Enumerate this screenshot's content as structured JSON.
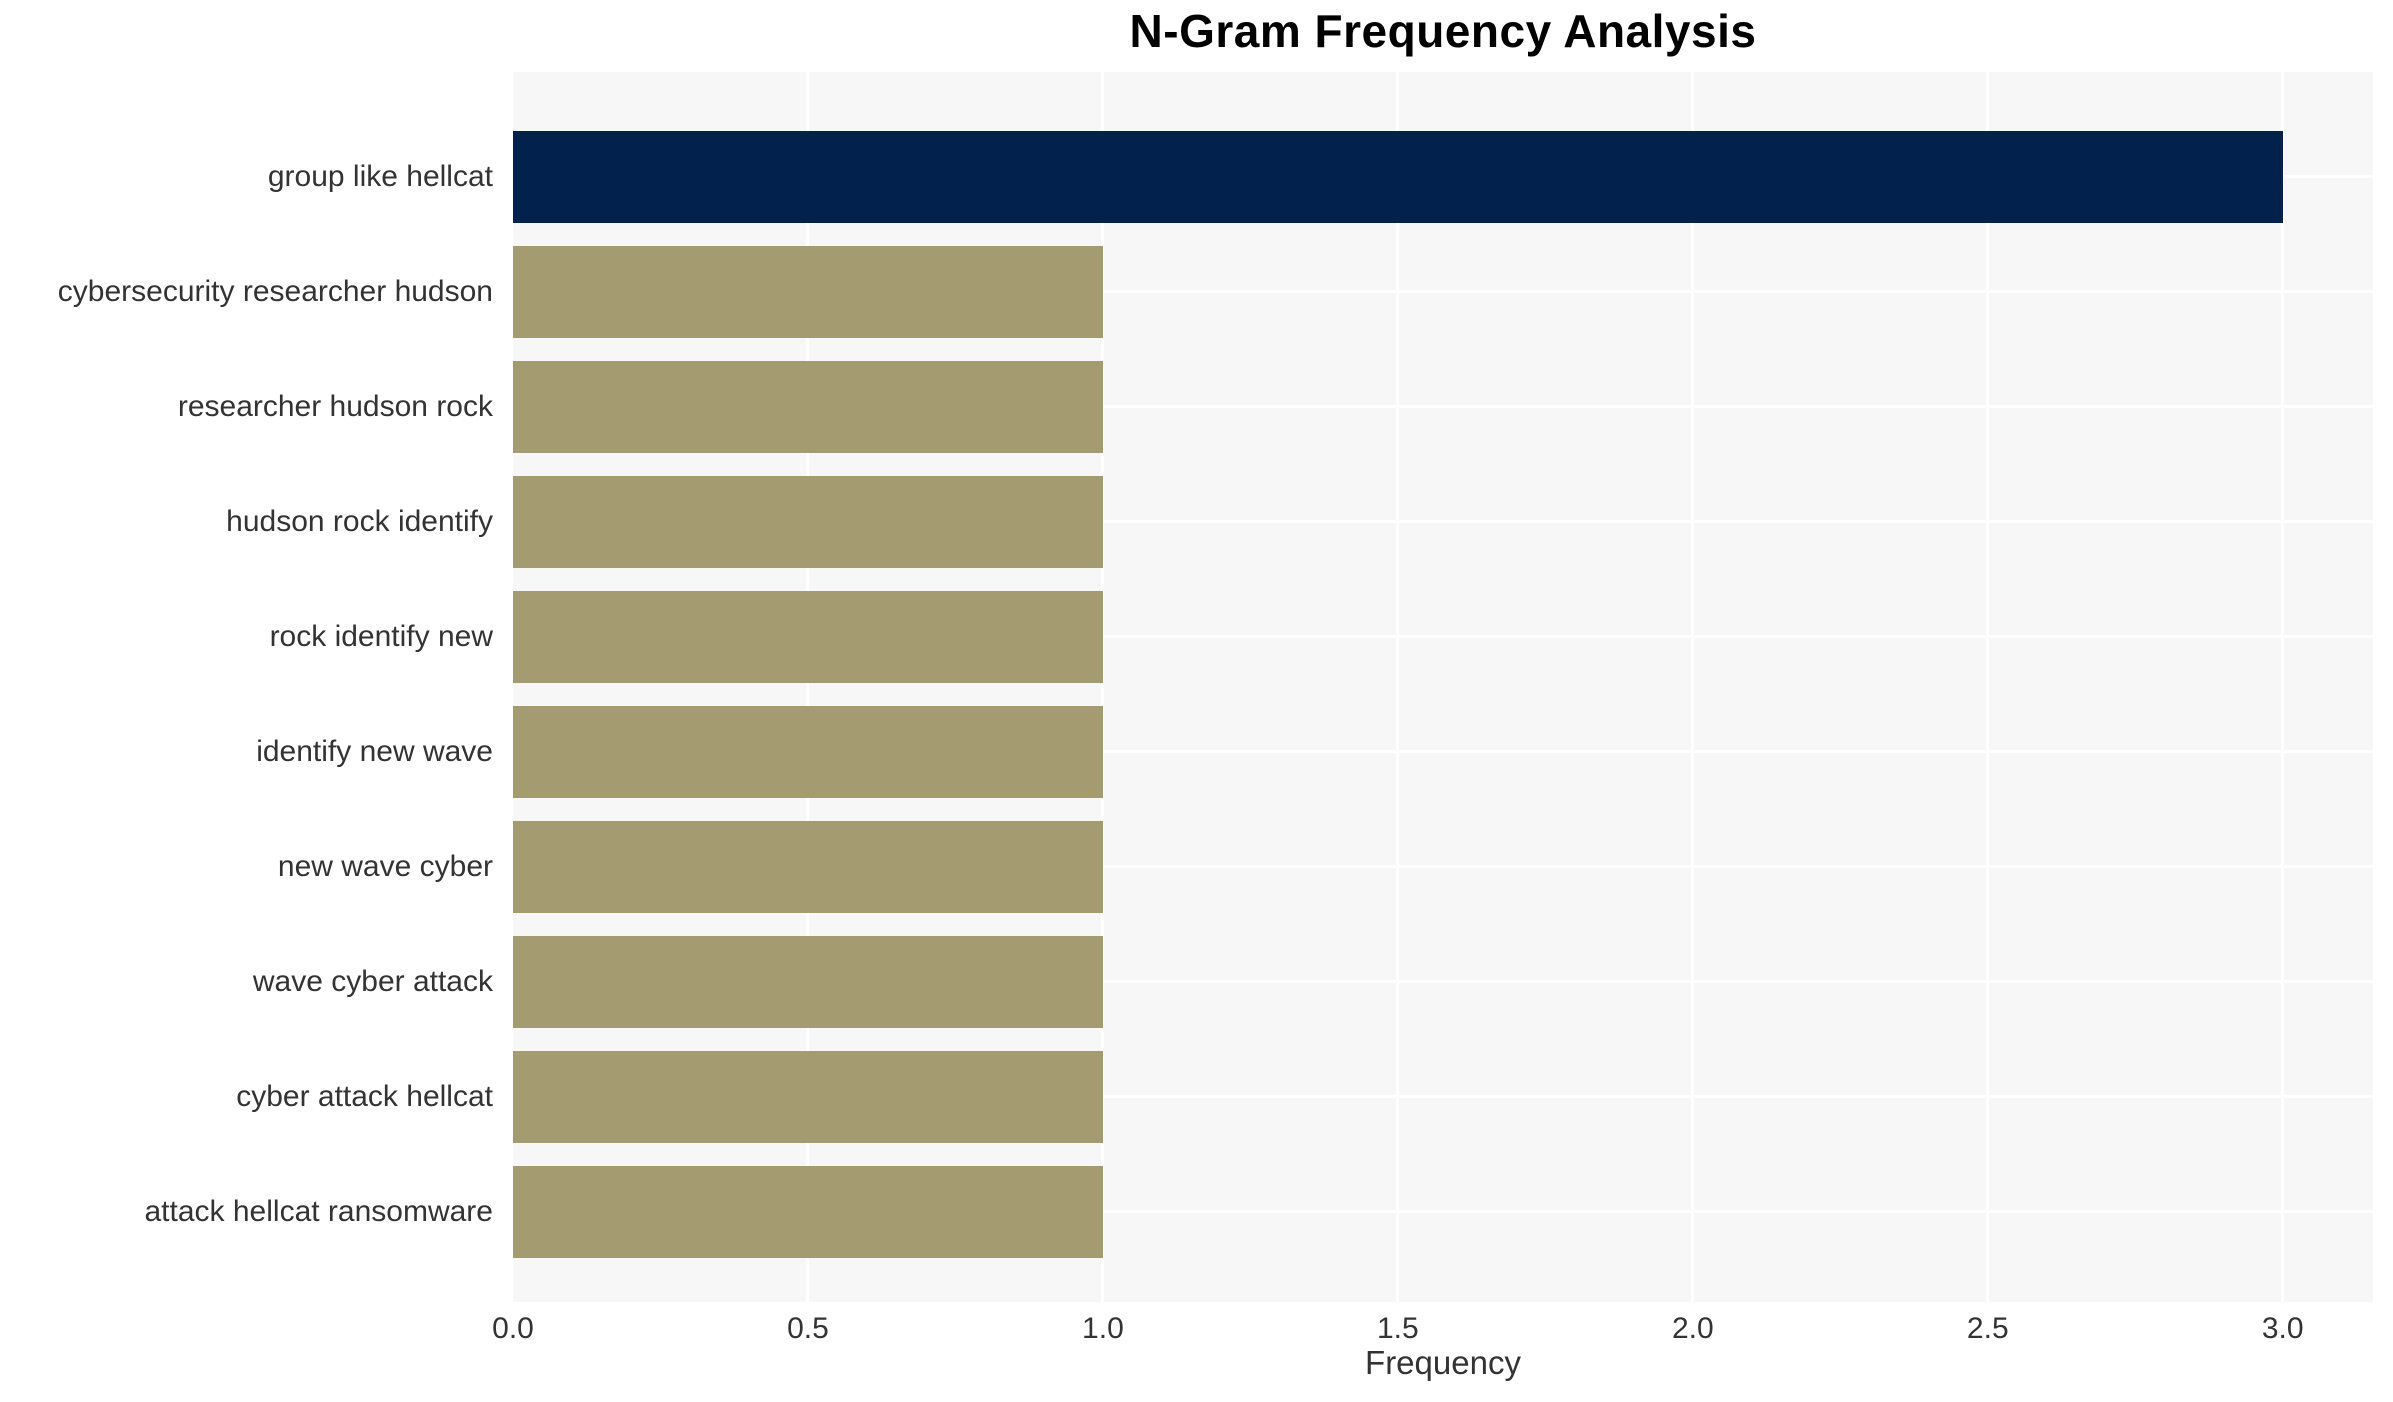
{
  "chart": {
    "title": "N-Gram Frequency Analysis",
    "xlabel": "Frequency"
  },
  "chart_data": {
    "type": "bar",
    "orientation": "horizontal",
    "title": "N-Gram Frequency Analysis",
    "xlabel": "Frequency",
    "ylabel": "",
    "categories": [
      "group like hellcat",
      "cybersecurity researcher hudson",
      "researcher hudson rock",
      "hudson rock identify",
      "rock identify new",
      "identify new wave",
      "new wave cyber",
      "wave cyber attack",
      "cyber attack hellcat",
      "attack hellcat ransomware"
    ],
    "values": [
      3,
      1,
      1,
      1,
      1,
      1,
      1,
      1,
      1,
      1
    ],
    "bar_colors": [
      "#02214d",
      "#a49b70",
      "#a49b70",
      "#a49b70",
      "#a49b70",
      "#a49b70",
      "#a49b70",
      "#a49b70",
      "#a49b70",
      "#a49b70"
    ],
    "xlim": [
      0,
      3.153
    ],
    "xticks": [
      0.0,
      0.5,
      1.0,
      1.5,
      2.0,
      2.5,
      3.0
    ],
    "xtick_labels": [
      "0.0",
      "0.5",
      "1.0",
      "1.5",
      "2.0",
      "2.5",
      "3.0"
    ],
    "grid": true,
    "grid_color": "#ffffff",
    "plot_background": "#f7f7f7",
    "figure_background": "#ffffff",
    "tick_text_color": "#333333",
    "title_color": "#000000",
    "legend": false
  }
}
